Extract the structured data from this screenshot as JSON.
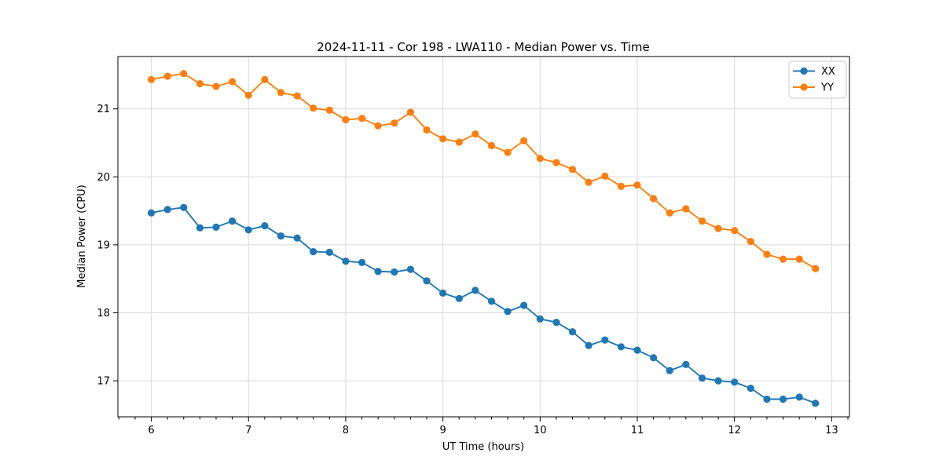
{
  "figure": {
    "background": "#ffffff"
  },
  "chart_data": {
    "type": "line",
    "title": "2024-11-11 - Cor 198 - LWA110 - Median Power vs. Time",
    "xlabel": "UT Time (hours)",
    "ylabel": "Median Power (CPU)",
    "xlim": [
      5.656,
      13.183
    ],
    "ylim": [
      16.47,
      21.77
    ],
    "xticks": [
      6,
      7,
      8,
      9,
      10,
      11,
      12,
      13
    ],
    "yticks": [
      17,
      18,
      19,
      20,
      21
    ],
    "x_minor_tick_step": 0.1666667,
    "grid": true,
    "grid_color": "#d9d9d9",
    "axis_color": "#000000",
    "legend_position": "upper right",
    "x": [
      6.0,
      6.167,
      6.333,
      6.5,
      6.667,
      6.833,
      7.0,
      7.167,
      7.333,
      7.5,
      7.667,
      7.833,
      8.0,
      8.167,
      8.333,
      8.5,
      8.667,
      8.833,
      9.0,
      9.167,
      9.333,
      9.5,
      9.667,
      9.833,
      10.0,
      10.167,
      10.333,
      10.5,
      10.667,
      10.833,
      11.0,
      11.167,
      11.333,
      11.5,
      11.667,
      11.833,
      12.0,
      12.167,
      12.333,
      12.5,
      12.667,
      12.833
    ],
    "series": [
      {
        "name": "XX",
        "color": "#1f77b4",
        "values": [
          19.47,
          19.52,
          19.55,
          19.25,
          19.26,
          19.35,
          19.22,
          19.28,
          19.13,
          19.1,
          18.9,
          18.89,
          18.76,
          18.74,
          18.61,
          18.6,
          18.64,
          18.47,
          18.29,
          18.21,
          18.33,
          18.17,
          18.02,
          18.11,
          17.91,
          17.86,
          17.72,
          17.52,
          17.6,
          17.5,
          17.45,
          17.34,
          17.15,
          17.24,
          17.04,
          17.0,
          16.98,
          16.89,
          16.73,
          16.73,
          16.76,
          16.67
        ]
      },
      {
        "name": "YY",
        "color": "#ff7f0e",
        "values": [
          21.43,
          21.48,
          21.52,
          21.37,
          21.33,
          21.4,
          21.2,
          21.43,
          21.24,
          21.19,
          21.01,
          20.98,
          20.84,
          20.86,
          20.75,
          20.79,
          20.95,
          20.69,
          20.56,
          20.51,
          20.63,
          20.46,
          20.36,
          20.53,
          20.27,
          20.21,
          20.11,
          19.92,
          20.01,
          19.86,
          19.88,
          19.68,
          19.47,
          19.53,
          19.35,
          19.24,
          19.21,
          19.05,
          18.86,
          18.79,
          18.79,
          18.65
        ]
      }
    ]
  }
}
